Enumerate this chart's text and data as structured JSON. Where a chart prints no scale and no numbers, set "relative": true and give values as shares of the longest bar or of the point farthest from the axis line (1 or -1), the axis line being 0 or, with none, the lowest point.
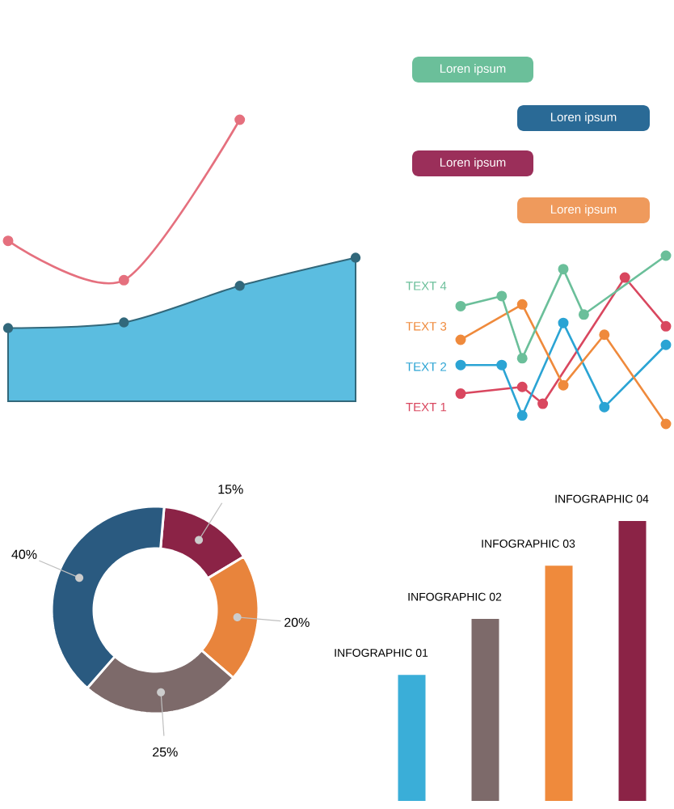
{
  "chart_data": [
    {
      "type": "line",
      "relative": true,
      "categories": [
        null,
        null,
        null,
        null
      ],
      "marker": "circle",
      "series": [
        {
          "type": "area",
          "color": "#5bbde0",
          "values": [
            0.26,
            0.28,
            0.41,
            0.51
          ]
        },
        {
          "type": "line",
          "color": "#e5707e",
          "values": [
            0.57,
            0.43,
            1,
            null
          ]
        }
      ]
    },
    {
      "type": "other",
      "annotations": [
        "Loren ipsum",
        "Loren ipsum",
        "Loren ipsum",
        "Loren ipsum"
      ]
    },
    {
      "type": "line",
      "relative": true,
      "legend": "left",
      "marker": "circle",
      "categories": [
        null,
        null,
        null,
        null,
        null,
        null,
        null,
        null,
        null,
        null,
        null
      ],
      "series": [
        {
          "name": "TEXT 1",
          "color": "#d9475f",
          "values": [
            0.18,
            null,
            null,
            0.22,
            0.12,
            null,
            null,
            null,
            0.87,
            null,
            0.58
          ]
        },
        {
          "name": "TEXT 2",
          "color": "#2ba4d4",
          "values": [
            0.35,
            null,
            0.35,
            0.05,
            null,
            0.6,
            null,
            0.1,
            null,
            null,
            0.47
          ]
        },
        {
          "name": "TEXT 3",
          "color": "#ef8a3c",
          "values": [
            0.5,
            null,
            null,
            0.71,
            null,
            0.23,
            null,
            0.53,
            null,
            null,
            0
          ]
        },
        {
          "name": "TEXT 4",
          "color": "#6bbf9a",
          "values": [
            0.7,
            null,
            0.76,
            0.39,
            null,
            0.92,
            0.65,
            null,
            null,
            null,
            1.0
          ]
        }
      ]
    },
    {
      "type": "donut",
      "categories": [
        null,
        null,
        null,
        null
      ],
      "values": [
        15,
        20,
        25,
        40
      ],
      "value_labels": [
        "15%",
        "20%",
        "25%",
        "40%"
      ],
      "colors": [
        "#8b2346",
        "#e8843c",
        "#7d6a6a",
        "#2a5a80"
      ]
    },
    {
      "type": "bar",
      "relative": true,
      "categories": [
        "INFOGRAPHIC 01",
        "INFOGRAPHIC 02",
        "INFOGRAPHIC 03",
        "INFOGRAPHIC 04"
      ],
      "values": [
        0.45,
        0.65,
        0.84,
        1
      ],
      "colors": [
        "#3aaed8",
        "#7d6a6a",
        "#ef8a3c",
        "#8b2346"
      ]
    }
  ]
}
